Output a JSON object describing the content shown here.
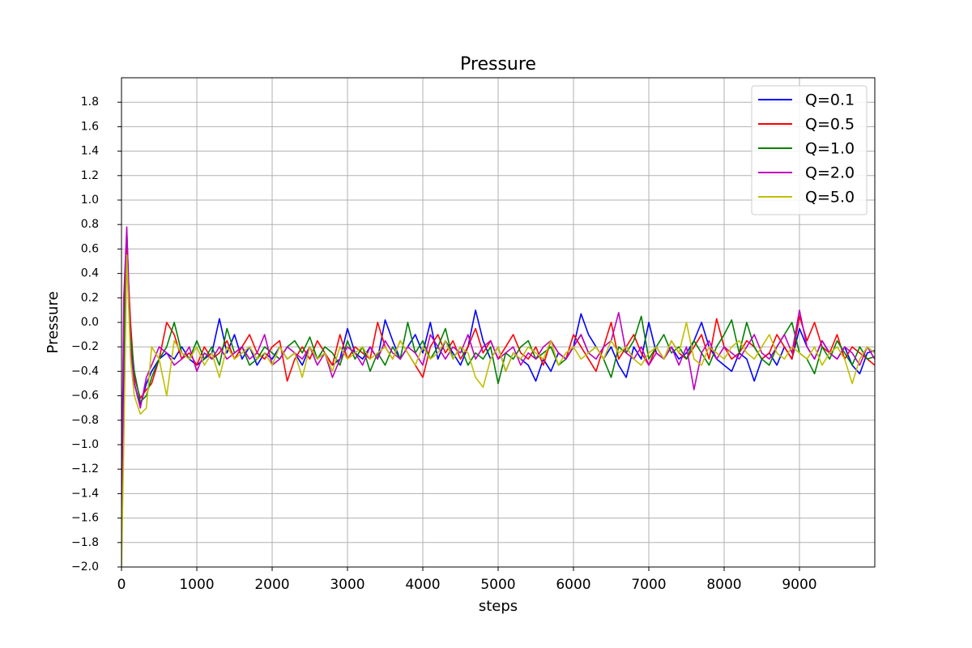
{
  "chart_data": {
    "type": "line",
    "title": "Pressure",
    "x_label": "steps",
    "y_label": "Pressure",
    "x": [
      0,
      30,
      70,
      120,
      170,
      250,
      330,
      400,
      500,
      600,
      700,
      800,
      900,
      1000,
      1100,
      1200,
      1300,
      1400,
      1500,
      1600,
      1700,
      1800,
      1900,
      2000,
      2100,
      2200,
      2300,
      2400,
      2500,
      2600,
      2700,
      2800,
      2900,
      3000,
      3100,
      3200,
      3300,
      3400,
      3500,
      3600,
      3700,
      3800,
      3900,
      4000,
      4100,
      4200,
      4300,
      4400,
      4500,
      4600,
      4700,
      4800,
      4900,
      5000,
      5100,
      5200,
      5300,
      5400,
      5500,
      5600,
      5700,
      5800,
      5900,
      6000,
      6100,
      6200,
      6300,
      6400,
      6500,
      6600,
      6700,
      6800,
      6900,
      7000,
      7100,
      7200,
      7300,
      7400,
      7500,
      7600,
      7700,
      7800,
      7900,
      8000,
      8100,
      8200,
      8300,
      8400,
      8500,
      8600,
      8700,
      8800,
      8900,
      9000,
      9100,
      9200,
      9300,
      9400,
      9500,
      9600,
      9700,
      9800,
      9900,
      10000
    ],
    "series": [
      {
        "name": "Q=0.1",
        "color": "#0000ff",
        "values": [
          -1.9,
          -0.5,
          0.75,
          -0.1,
          -0.5,
          -0.68,
          -0.5,
          -0.4,
          -0.3,
          -0.25,
          -0.3,
          -0.2,
          -0.3,
          -0.35,
          -0.3,
          -0.25,
          0.03,
          -0.25,
          -0.1,
          -0.3,
          -0.2,
          -0.35,
          -0.25,
          -0.3,
          -0.2,
          -0.3,
          -0.25,
          -0.35,
          -0.2,
          -0.3,
          -0.25,
          -0.35,
          -0.3,
          -0.05,
          -0.25,
          -0.3,
          -0.2,
          -0.3,
          0.02,
          -0.15,
          -0.3,
          -0.2,
          -0.1,
          -0.25,
          0.0,
          -0.3,
          -0.15,
          -0.25,
          -0.35,
          -0.2,
          0.1,
          -0.15,
          -0.3,
          -0.2,
          -0.4,
          -0.25,
          -0.3,
          -0.35,
          -0.48,
          -0.3,
          -0.4,
          -0.25,
          -0.3,
          -0.2,
          0.07,
          -0.1,
          -0.2,
          -0.3,
          -0.2,
          -0.35,
          -0.45,
          -0.2,
          -0.3,
          0.0,
          -0.25,
          -0.3,
          -0.2,
          -0.3,
          -0.25,
          -0.15,
          0.0,
          -0.2,
          -0.3,
          -0.35,
          -0.4,
          -0.25,
          -0.3,
          -0.48,
          -0.3,
          -0.25,
          -0.35,
          -0.2,
          -0.3,
          -0.05,
          -0.2,
          -0.3,
          -0.15,
          -0.25,
          -0.3,
          -0.2,
          -0.35,
          -0.42,
          -0.25,
          -0.23
        ]
      },
      {
        "name": "Q=0.5",
        "color": "#ff0000",
        "values": [
          -1.5,
          0.0,
          0.6,
          0.0,
          -0.45,
          -0.62,
          -0.55,
          -0.5,
          -0.3,
          0.0,
          -0.1,
          -0.3,
          -0.25,
          -0.35,
          -0.2,
          -0.3,
          -0.25,
          -0.15,
          -0.3,
          -0.2,
          -0.1,
          -0.25,
          -0.3,
          -0.2,
          -0.15,
          -0.48,
          -0.3,
          -0.2,
          -0.3,
          -0.15,
          -0.25,
          -0.35,
          -0.1,
          -0.3,
          -0.2,
          -0.25,
          -0.3,
          0.0,
          -0.2,
          -0.3,
          -0.15,
          -0.25,
          -0.35,
          -0.45,
          -0.2,
          -0.1,
          -0.25,
          -0.15,
          -0.3,
          -0.2,
          -0.05,
          -0.25,
          -0.15,
          -0.3,
          -0.2,
          -0.1,
          -0.25,
          -0.3,
          -0.2,
          -0.35,
          -0.15,
          -0.25,
          -0.3,
          -0.1,
          -0.2,
          -0.3,
          -0.4,
          -0.2,
          0.0,
          -0.3,
          -0.2,
          -0.1,
          -0.25,
          -0.35,
          -0.2,
          -0.3,
          -0.15,
          -0.25,
          -0.3,
          -0.2,
          -0.1,
          -0.3,
          0.03,
          -0.2,
          -0.3,
          -0.25,
          -0.15,
          -0.2,
          -0.3,
          -0.25,
          -0.1,
          -0.2,
          -0.3,
          0.05,
          -0.15,
          0.0,
          -0.2,
          -0.25,
          -0.1,
          -0.3,
          -0.2,
          -0.25,
          -0.3,
          -0.35
        ]
      },
      {
        "name": "Q=1.0",
        "color": "#008000",
        "values": [
          -1.2,
          -0.2,
          0.55,
          -0.1,
          -0.4,
          -0.65,
          -0.6,
          -0.45,
          -0.3,
          -0.2,
          0.0,
          -0.25,
          -0.3,
          -0.15,
          -0.3,
          -0.2,
          -0.35,
          -0.05,
          -0.25,
          -0.2,
          -0.35,
          -0.3,
          -0.2,
          -0.25,
          -0.3,
          -0.2,
          -0.15,
          -0.25,
          -0.12,
          -0.3,
          -0.2,
          -0.25,
          -0.35,
          -0.15,
          -0.3,
          -0.2,
          -0.4,
          -0.25,
          -0.35,
          -0.2,
          -0.3,
          0.0,
          -0.25,
          -0.15,
          -0.3,
          -0.2,
          -0.05,
          -0.3,
          -0.2,
          -0.35,
          -0.25,
          -0.3,
          -0.2,
          -0.5,
          -0.25,
          -0.3,
          -0.2,
          -0.15,
          -0.3,
          -0.25,
          -0.2,
          -0.35,
          -0.3,
          -0.2,
          -0.1,
          -0.25,
          -0.2,
          -0.3,
          -0.45,
          -0.2,
          -0.25,
          -0.15,
          0.05,
          -0.3,
          -0.2,
          -0.1,
          -0.25,
          -0.2,
          -0.3,
          -0.15,
          -0.25,
          -0.35,
          -0.2,
          -0.1,
          0.02,
          -0.25,
          0.0,
          -0.2,
          -0.3,
          -0.35,
          -0.2,
          -0.1,
          0.0,
          -0.25,
          -0.3,
          -0.42,
          -0.2,
          -0.3,
          -0.15,
          -0.25,
          -0.35,
          -0.2,
          -0.3,
          -0.28
        ]
      },
      {
        "name": "Q=2.0",
        "color": "#bf00bf",
        "values": [
          -1.6,
          0.2,
          0.78,
          -0.2,
          -0.5,
          -0.7,
          -0.45,
          -0.35,
          -0.2,
          -0.25,
          -0.35,
          -0.3,
          -0.2,
          -0.4,
          -0.25,
          -0.3,
          -0.2,
          -0.3,
          -0.25,
          -0.2,
          -0.3,
          -0.25,
          -0.1,
          -0.35,
          -0.3,
          -0.2,
          -0.25,
          -0.3,
          -0.2,
          -0.35,
          -0.25,
          -0.45,
          -0.3,
          -0.2,
          -0.25,
          -0.35,
          -0.2,
          -0.3,
          -0.15,
          -0.25,
          -0.3,
          -0.2,
          -0.25,
          -0.35,
          -0.1,
          -0.2,
          -0.3,
          -0.2,
          -0.25,
          -0.1,
          -0.3,
          -0.2,
          -0.15,
          -0.3,
          -0.25,
          -0.2,
          -0.35,
          -0.25,
          -0.3,
          -0.2,
          -0.15,
          -0.25,
          -0.3,
          -0.2,
          -0.1,
          -0.25,
          -0.3,
          -0.2,
          -0.15,
          0.08,
          -0.25,
          -0.3,
          -0.2,
          -0.35,
          -0.25,
          -0.3,
          -0.2,
          -0.35,
          -0.2,
          -0.55,
          -0.25,
          -0.15,
          -0.3,
          -0.2,
          -0.25,
          -0.3,
          -0.2,
          -0.1,
          -0.25,
          -0.3,
          -0.2,
          -0.1,
          -0.25,
          0.1,
          -0.2,
          -0.3,
          -0.15,
          -0.25,
          -0.3,
          -0.2,
          -0.25,
          -0.35,
          -0.2,
          -0.3
        ]
      },
      {
        "name": "Q=5.0",
        "color": "#bfbf00",
        "values": [
          -2.0,
          -1.0,
          0.55,
          -0.3,
          -0.6,
          -0.75,
          -0.7,
          -0.2,
          -0.3,
          -0.6,
          -0.15,
          -0.25,
          -0.3,
          -0.2,
          -0.35,
          -0.25,
          -0.45,
          -0.2,
          -0.3,
          -0.25,
          -0.2,
          -0.3,
          -0.25,
          -0.35,
          -0.2,
          -0.3,
          -0.25,
          -0.45,
          -0.2,
          -0.3,
          -0.25,
          -0.4,
          -0.2,
          -0.3,
          -0.25,
          -0.2,
          -0.3,
          -0.25,
          -0.2,
          -0.3,
          -0.15,
          -0.25,
          -0.35,
          -0.2,
          -0.3,
          -0.25,
          -0.15,
          -0.3,
          -0.2,
          -0.25,
          -0.45,
          -0.53,
          -0.3,
          -0.2,
          -0.4,
          -0.25,
          -0.3,
          -0.2,
          -0.25,
          -0.3,
          -0.15,
          -0.35,
          -0.25,
          -0.2,
          -0.3,
          -0.25,
          -0.2,
          -0.3,
          -0.15,
          -0.25,
          -0.2,
          -0.3,
          -0.35,
          -0.25,
          -0.2,
          -0.3,
          -0.15,
          -0.25,
          0.0,
          -0.3,
          -0.35,
          -0.2,
          -0.25,
          -0.3,
          -0.2,
          -0.15,
          -0.25,
          -0.3,
          -0.2,
          -0.1,
          -0.25,
          -0.3,
          -0.2,
          -0.25,
          -0.3,
          -0.2,
          -0.35,
          -0.25,
          -0.2,
          -0.3,
          -0.5,
          -0.3,
          -0.2,
          -0.25
        ]
      }
    ],
    "xlim": [
      0,
      10000
    ],
    "xticks": [
      0,
      1000,
      2000,
      3000,
      4000,
      5000,
      6000,
      7000,
      8000,
      9000
    ],
    "ylim": [
      -2,
      2
    ],
    "yticks": [
      {
        "value": -2,
        "label": "−2.0"
      },
      {
        "value": -1.8,
        "label": "−1.8"
      },
      {
        "value": -1.6,
        "label": "−1.6"
      },
      {
        "value": -1.4,
        "label": "−1.4"
      },
      {
        "value": -1.2,
        "label": "−1.2"
      },
      {
        "value": -1,
        "label": "−1.0"
      },
      {
        "value": -0.8,
        "label": "−0.8"
      },
      {
        "value": -0.6,
        "label": "−0.6"
      },
      {
        "value": -0.4,
        "label": "−0.4"
      },
      {
        "value": -0.2,
        "label": "−0.2"
      },
      {
        "value": 0,
        "label": "0.0"
      },
      0.2,
      0.4,
      0.6,
      0.8,
      {
        "value": 1,
        "label": "1.0"
      },
      1.2,
      1.4,
      1.6,
      1.8
    ],
    "grid": true,
    "legend": "upper right"
  }
}
